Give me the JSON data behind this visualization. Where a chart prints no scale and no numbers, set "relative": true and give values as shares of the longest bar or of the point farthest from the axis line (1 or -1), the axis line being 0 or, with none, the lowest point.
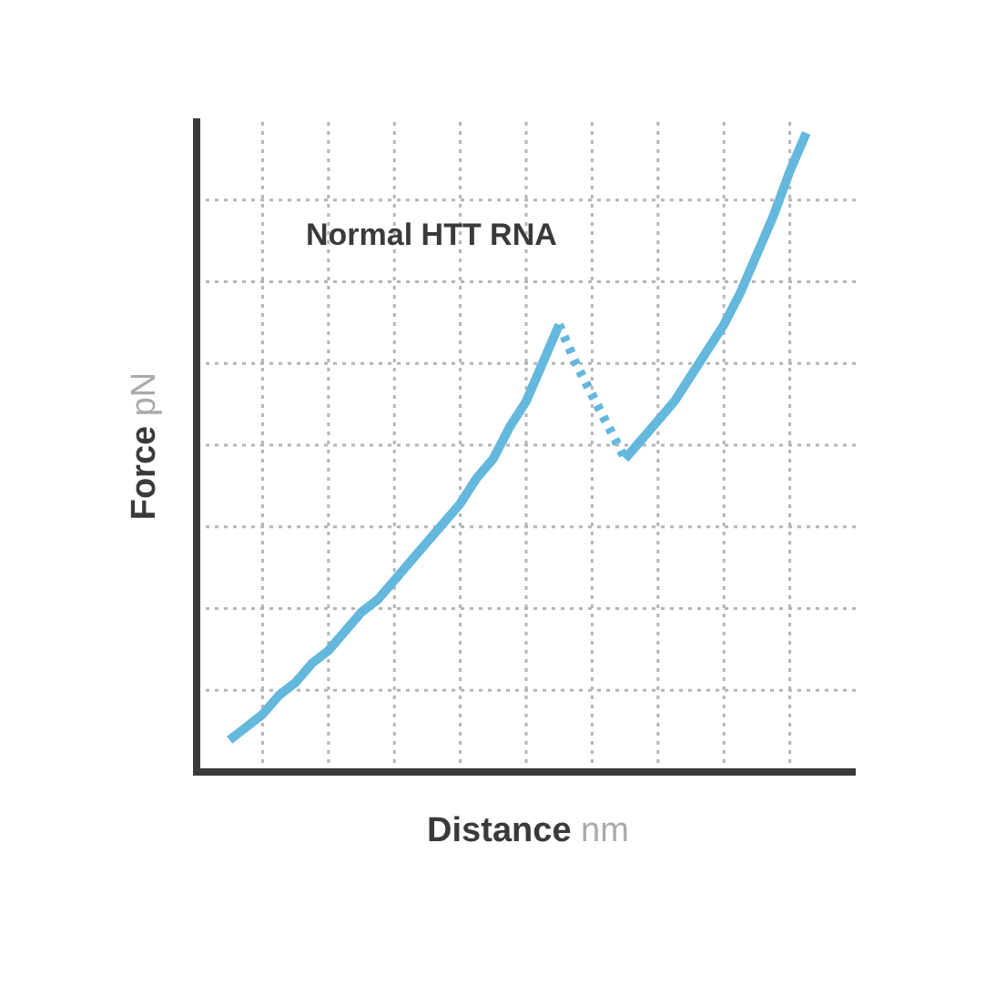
{
  "chart_data": {
    "type": "line",
    "relative": true,
    "title": "Normal HTT RNA",
    "xlabel": "Distance nm",
    "ylabel": "Force pN",
    "grid": true,
    "legend": false,
    "marker": "none",
    "categories": [
      null,
      null,
      null,
      null,
      null,
      null,
      null,
      null,
      null,
      null,
      null,
      null,
      null,
      null,
      null,
      null,
      null,
      null,
      null,
      null,
      null,
      null,
      null,
      null,
      null,
      null,
      null,
      null,
      null,
      null,
      null,
      null,
      null,
      null,
      null,
      null,
      null,
      null,
      null,
      null,
      null
    ],
    "series": [
      {
        "color": "#64b8dd",
        "line_style": "solid",
        "values": [
          null,
          null,
          0.05,
          0.07,
          0.09,
          0.12,
          0.14,
          0.17,
          0.19,
          0.22,
          0.25,
          0.27,
          0.3,
          0.33,
          0.36,
          0.39,
          0.42,
          0.46,
          0.49,
          0.54,
          0.58,
          0.64,
          0.7,
          null,
          null,
          null,
          null,
          null,
          null,
          null,
          null,
          null,
          null,
          null,
          null,
          null,
          null,
          null,
          null,
          null,
          null
        ]
      },
      {
        "color": "#64b8dd",
        "line_style": "dotted",
        "values": [
          null,
          null,
          null,
          null,
          null,
          null,
          null,
          null,
          null,
          null,
          null,
          null,
          null,
          null,
          null,
          null,
          null,
          null,
          null,
          null,
          null,
          null,
          0.7,
          0.64,
          0.59,
          0.54,
          0.49,
          null,
          null,
          null,
          null,
          null,
          null,
          null,
          null,
          null,
          null,
          null,
          null,
          null,
          null
        ]
      },
      {
        "color": "#64b8dd",
        "line_style": "solid",
        "values": [
          null,
          null,
          null,
          null,
          null,
          null,
          null,
          null,
          null,
          null,
          null,
          null,
          null,
          null,
          null,
          null,
          null,
          null,
          null,
          null,
          null,
          null,
          null,
          null,
          null,
          null,
          0.49,
          0.52,
          0.55,
          0.58,
          0.62,
          0.66,
          0.7,
          0.75,
          0.81,
          0.87,
          0.94,
          1,
          null,
          null,
          null
        ]
      }
    ]
  }
}
